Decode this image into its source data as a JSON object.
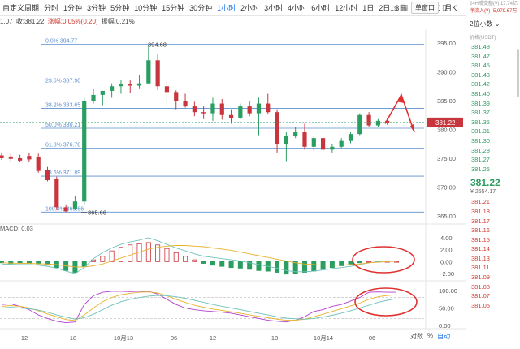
{
  "toolbar": {
    "items": [
      "自定义周期",
      "分时",
      "1分钟",
      "3分钟",
      "5分钟",
      "10分钟",
      "15分钟",
      "30分钟",
      "1小时",
      "2小时",
      "3小时",
      "4小时",
      "6小时",
      "12小时",
      "1日",
      "2日",
      "3日",
      "5日",
      "周K",
      "月K"
    ],
    "active": "1小时",
    "right_text": "1s",
    "window_btn": "单窗口"
  },
  "subbar": {
    "open": "1.07",
    "close_label": "收:381.22",
    "change_label": "涨幅:0.05%(0.20)",
    "amp_label": "振幅:0.21%",
    "left_cut": "a"
  },
  "main_chart": {
    "price_levels": [
      395.0,
      390.0,
      385.0,
      380.0,
      375.0,
      370.0,
      365.0
    ],
    "fib": [
      {
        "label": "0.0% 394.77",
        "price": 394.77
      },
      {
        "label": "23.6% 387.90",
        "price": 387.9
      },
      {
        "label": "38.2% 383.65",
        "price": 383.65
      },
      {
        "label": "50.0% 380.21",
        "price": 380.21
      },
      {
        "label": "61.8% 376.78",
        "price": 376.78
      },
      {
        "label": "78.6% 371.89",
        "price": 371.89
      },
      {
        "label": "100.0% 365.66",
        "price": 365.66
      }
    ],
    "high_label": "394.68",
    "low_label": "365.66",
    "current_label": "381.22"
  },
  "chart_data": {
    "type": "candlestick",
    "candles": [
      {
        "o": 375.5,
        "h": 376.0,
        "c": 375.0,
        "l": 374.7
      },
      {
        "o": 375.3,
        "h": 375.8,
        "c": 374.9,
        "l": 374.5
      },
      {
        "o": 375.0,
        "h": 375.6,
        "c": 374.6,
        "l": 374.3
      },
      {
        "o": 375.4,
        "h": 376.0,
        "c": 374.8,
        "l": 374.4
      },
      {
        "o": 375.2,
        "h": 375.8,
        "c": 372.8,
        "l": 372.5
      },
      {
        "o": 372.9,
        "h": 373.5,
        "c": 371.2,
        "l": 371.0
      },
      {
        "o": 371.4,
        "h": 371.8,
        "c": 366.5,
        "l": 366.0
      },
      {
        "o": 366.5,
        "h": 367.0,
        "c": 365.8,
        "l": 365.66
      },
      {
        "o": 366.2,
        "h": 368.5,
        "c": 367.5,
        "l": 366.0
      },
      {
        "o": 367.5,
        "h": 385.5,
        "c": 385.0,
        "l": 367.0
      },
      {
        "o": 385.0,
        "h": 387.0,
        "c": 386.0,
        "l": 384.5
      },
      {
        "o": 386.0,
        "h": 386.6,
        "c": 386.7,
        "l": 384.2
      },
      {
        "o": 386.7,
        "h": 388.0,
        "c": 387.5,
        "l": 385.5
      },
      {
        "o": 387.5,
        "h": 388.5,
        "c": 387.9,
        "l": 386.2
      },
      {
        "o": 387.9,
        "h": 388.5,
        "c": 387.6,
        "l": 386.3
      },
      {
        "o": 387.6,
        "h": 389.5,
        "c": 388.0,
        "l": 387.0
      },
      {
        "o": 388.0,
        "h": 394.68,
        "c": 392.0,
        "l": 387.8
      },
      {
        "o": 392.0,
        "h": 393.0,
        "c": 387.5,
        "l": 386.8
      },
      {
        "o": 387.5,
        "h": 388.8,
        "c": 386.5,
        "l": 384.0
      },
      {
        "o": 386.5,
        "h": 386.8,
        "c": 385.0,
        "l": 383.5
      },
      {
        "o": 385.0,
        "h": 386.2,
        "c": 384.0,
        "l": 383.8
      },
      {
        "o": 384.0,
        "h": 384.8,
        "c": 383.0,
        "l": 382.3
      },
      {
        "o": 383.0,
        "h": 384.0,
        "c": 382.8,
        "l": 381.8
      },
      {
        "o": 382.8,
        "h": 385.5,
        "c": 384.5,
        "l": 381.5
      },
      {
        "o": 384.5,
        "h": 385.3,
        "c": 382.5,
        "l": 381.7
      },
      {
        "o": 382.5,
        "h": 383.5,
        "c": 382.0,
        "l": 381.0
      },
      {
        "o": 382.0,
        "h": 384.5,
        "c": 384.0,
        "l": 381.8
      },
      {
        "o": 384.0,
        "h": 385.0,
        "c": 382.8,
        "l": 382.3
      },
      {
        "o": 382.8,
        "h": 385.5,
        "c": 384.5,
        "l": 379.0
      },
      {
        "o": 384.5,
        "h": 386.2,
        "c": 383.0,
        "l": 382.6
      },
      {
        "o": 383.0,
        "h": 383.5,
        "c": 377.5,
        "l": 376.0
      },
      {
        "o": 377.5,
        "h": 379.5,
        "c": 378.8,
        "l": 374.5
      },
      {
        "o": 378.8,
        "h": 380.5,
        "c": 379.5,
        "l": 378.5
      },
      {
        "o": 379.5,
        "h": 381.0,
        "c": 377.0,
        "l": 376.5
      },
      {
        "o": 377.0,
        "h": 378.8,
        "c": 378.5,
        "l": 376.3
      },
      {
        "o": 378.5,
        "h": 378.9,
        "c": 376.5,
        "l": 376.2
      },
      {
        "o": 376.5,
        "h": 377.5,
        "c": 377.0,
        "l": 376.0
      },
      {
        "o": 377.0,
        "h": 378.5,
        "c": 378.0,
        "l": 376.8
      },
      {
        "o": 378.0,
        "h": 379.5,
        "c": 379.2,
        "l": 377.6
      },
      {
        "o": 379.2,
        "h": 382.8,
        "c": 382.5,
        "l": 379.0
      },
      {
        "o": 382.5,
        "h": 383.0,
        "c": 380.7,
        "l": 380.5
      },
      {
        "o": 380.7,
        "h": 381.8,
        "c": 381.5,
        "l": 380.4
      },
      {
        "o": 381.5,
        "h": 381.9,
        "c": 381.2,
        "l": 380.8
      },
      {
        "o": 381.2,
        "h": 381.3,
        "c": 381.2,
        "l": 381.0
      }
    ],
    "macd": {
      "label": "MACD: 0.03",
      "levels": [
        "4.00",
        "2.00",
        "0.00",
        "-2.00"
      ],
      "hist": [
        -0.2,
        -0.3,
        -0.25,
        -0.3,
        -0.4,
        -0.6,
        -1.0,
        -1.5,
        -1.8,
        -0.8,
        0.3,
        0.9,
        1.8,
        2.4,
        2.8,
        3.0,
        3.2,
        2.8,
        2.2,
        1.5,
        0.9,
        0.3,
        -0.3,
        -0.6,
        -0.8,
        -1.0,
        -1.1,
        -1.3,
        -1.5,
        -1.6,
        -1.8,
        -2.1,
        -2.0,
        -1.8,
        -1.6,
        -1.3,
        -1.0,
        -0.7,
        -0.4,
        -0.2,
        0.0,
        0.05,
        0.03,
        0.03
      ],
      "dif": [
        -0.4,
        -0.45,
        -0.5,
        -0.5,
        -0.6,
        -0.8,
        -1.1,
        -1.6,
        -2.0,
        -1.0,
        0.5,
        1.5,
        2.3,
        2.9,
        3.3,
        3.6,
        4.0,
        3.5,
        2.9,
        2.3,
        1.8,
        1.3,
        0.9,
        0.7,
        0.5,
        0.3,
        0.1,
        -0.2,
        -0.5,
        -0.8,
        -1.1,
        -1.5,
        -1.7,
        -1.7,
        -1.6,
        -1.4,
        -1.2,
        -1.0,
        -0.8,
        -0.5,
        -0.2,
        0.0,
        0.1,
        0.1
      ],
      "dea": [
        -0.2,
        -0.25,
        -0.28,
        -0.3,
        -0.35,
        -0.4,
        -0.5,
        -0.7,
        -0.9,
        -0.9,
        -0.7,
        -0.4,
        0.1,
        0.6,
        1.1,
        1.6,
        2.1,
        2.4,
        2.6,
        2.7,
        2.7,
        2.6,
        2.5,
        2.3,
        2.1,
        1.9,
        1.6,
        1.3,
        1.0,
        0.7,
        0.4,
        0.1,
        -0.2,
        -0.4,
        -0.5,
        -0.6,
        -0.6,
        -0.6,
        -0.5,
        -0.4,
        -0.2,
        -0.1,
        0.0,
        0.05
      ]
    },
    "kdj": {
      "levels": [
        "100.00",
        "50.00",
        "0.00"
      ],
      "k": [
        60,
        62,
        55,
        45,
        30,
        20,
        12,
        8,
        10,
        60,
        85,
        95,
        98,
        98,
        97,
        98,
        98,
        90,
        75,
        60,
        50,
        45,
        42,
        40,
        38,
        35,
        30,
        25,
        20,
        15,
        12,
        10,
        15,
        25,
        40,
        45,
        55,
        60,
        70,
        80,
        95,
        96,
        95,
        95
      ],
      "d": [
        55,
        57,
        55,
        50,
        42,
        33,
        25,
        17,
        14,
        30,
        50,
        68,
        80,
        88,
        92,
        95,
        96,
        93,
        85,
        75,
        66,
        58,
        52,
        47,
        43,
        39,
        35,
        30,
        26,
        22,
        18,
        15,
        15,
        18,
        25,
        32,
        40,
        48,
        56,
        64,
        75,
        82,
        86,
        88
      ],
      "j": [
        50,
        52,
        50,
        48,
        44,
        38,
        30,
        24,
        18,
        22,
        32,
        45,
        58,
        68,
        75,
        80,
        84,
        86,
        85,
        82,
        78,
        72,
        66,
        60,
        55,
        50,
        45,
        40,
        35,
        30,
        25,
        21,
        19,
        18,
        20,
        24,
        29,
        35,
        42,
        50,
        58,
        66,
        72,
        77
      ]
    },
    "x_labels": [
      "12",
      "18",
      "10月13",
      "06",
      "12",
      "18",
      "10月14",
      "06"
    ]
  },
  "right_panel": {
    "top1": "24H成交额(¥) 17.74亿",
    "top2": "净流入(¥) -5,979.67万",
    "precision": "2位小数",
    "header": "价格(USDT)",
    "asks": [
      "381.48",
      "381.47",
      "381.45",
      "381.43",
      "381.42",
      "381.40",
      "381.39",
      "381.37",
      "381.35",
      "381.31",
      "381.30",
      "381.28",
      "381.27",
      "381.25"
    ],
    "last": "381.22",
    "last_cny": "¥ 2554.17",
    "bids": [
      "381.21",
      "381.18",
      "381.17",
      "381.16",
      "381.15",
      "381.14",
      "381.13",
      "381.11",
      "381.09",
      "381.08",
      "381.07",
      "381.05"
    ]
  },
  "footer": {
    "label1": "对数",
    "label2": "%",
    "label3": "自动"
  },
  "colors": {
    "up": "#2a9d60",
    "down": "#c8353c",
    "fib": "#5b8fcf",
    "macd_hist_up": "#c8353c",
    "macd_hist_down": "#2a9d60",
    "k": "#b33fcf",
    "d": "#e8b22e",
    "j": "#6fc2ba",
    "annot": "#e03030"
  }
}
